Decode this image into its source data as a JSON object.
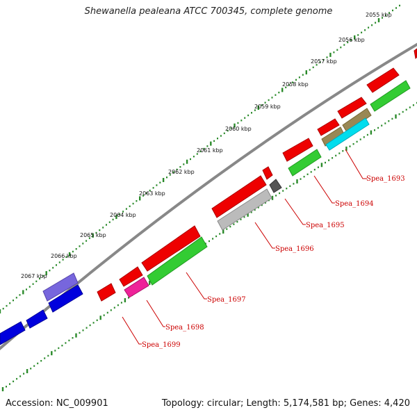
{
  "header": {
    "title": "Shewanella pealeana ATCC 700345, complete genome"
  },
  "footer": {
    "accession": "Accession: NC_009901",
    "stats": "Topology: circular; Length: 5,174,581 bp; Genes: 4,420"
  },
  "colors": {
    "backbone": "#888888",
    "tick": "#2a8a2a",
    "red": "#ee0000",
    "green": "#33cc33",
    "blue": "#0000dd",
    "purple": "#7766dd",
    "magenta": "#ee2299",
    "gray_light": "#bbbbbb",
    "gray_dark": "#555555",
    "olive": "#998855",
    "cyan": "#00ddee",
    "label": "#cc0000"
  },
  "scale_labels": [
    "2055 kbp",
    "2056 kbp",
    "2057 kbp",
    "2058 kbp",
    "2059 kbp",
    "2060 kbp",
    "2061 kbp",
    "2062 kbp",
    "2063 kbp",
    "2064 kbp",
    "2065 kbp",
    "2066 kbp",
    "2067 kbp"
  ],
  "gene_labels": [
    "Spea_1693",
    "Spea_1694",
    "Spea_1695",
    "Spea_1696",
    "Spea_1697",
    "Spea_1698",
    "Spea_1699"
  ]
}
